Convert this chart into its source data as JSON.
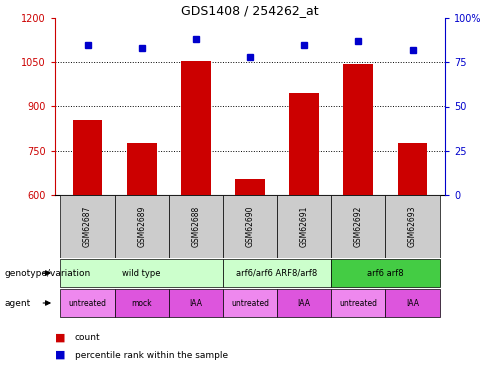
{
  "title": "GDS1408 / 254262_at",
  "samples": [
    "GSM62687",
    "GSM62689",
    "GSM62688",
    "GSM62690",
    "GSM62691",
    "GSM62692",
    "GSM62693"
  ],
  "bar_values": [
    855,
    775,
    1055,
    655,
    945,
    1045,
    775
  ],
  "dot_values": [
    85,
    83,
    88,
    78,
    85,
    87,
    82
  ],
  "bar_color": "#cc0000",
  "dot_color": "#0000cc",
  "ylim_left": [
    600,
    1200
  ],
  "ylim_right": [
    0,
    100
  ],
  "yticks_left": [
    600,
    750,
    900,
    1050,
    1200
  ],
  "yticks_right": [
    0,
    25,
    50,
    75,
    100
  ],
  "hlines": [
    750,
    900,
    1050
  ],
  "geno_groups": [
    {
      "label": "wild type",
      "start": 0,
      "end": 2,
      "color": "#ccffcc"
    },
    {
      "label": "arf6/arf6 ARF8/arf8",
      "start": 3,
      "end": 4,
      "color": "#ccffcc"
    },
    {
      "label": "arf6 arf8",
      "start": 5,
      "end": 6,
      "color": "#44cc44"
    }
  ],
  "agent_data": [
    {
      "label": "untreated",
      "col": 0,
      "color": "#ee88ee"
    },
    {
      "label": "mock",
      "col": 1,
      "color": "#dd55dd"
    },
    {
      "label": "IAA",
      "col": 2,
      "color": "#dd55dd"
    },
    {
      "label": "untreated",
      "col": 3,
      "color": "#ee88ee"
    },
    {
      "label": "IAA",
      "col": 4,
      "color": "#dd55dd"
    },
    {
      "label": "untreated",
      "col": 5,
      "color": "#ee88ee"
    },
    {
      "label": "IAA",
      "col": 6,
      "color": "#dd55dd"
    }
  ],
  "sample_box_color": "#cccccc",
  "left_axis_color": "#cc0000",
  "right_axis_color": "#0000cc",
  "legend_count_color": "#cc0000",
  "legend_dot_color": "#0000cc"
}
